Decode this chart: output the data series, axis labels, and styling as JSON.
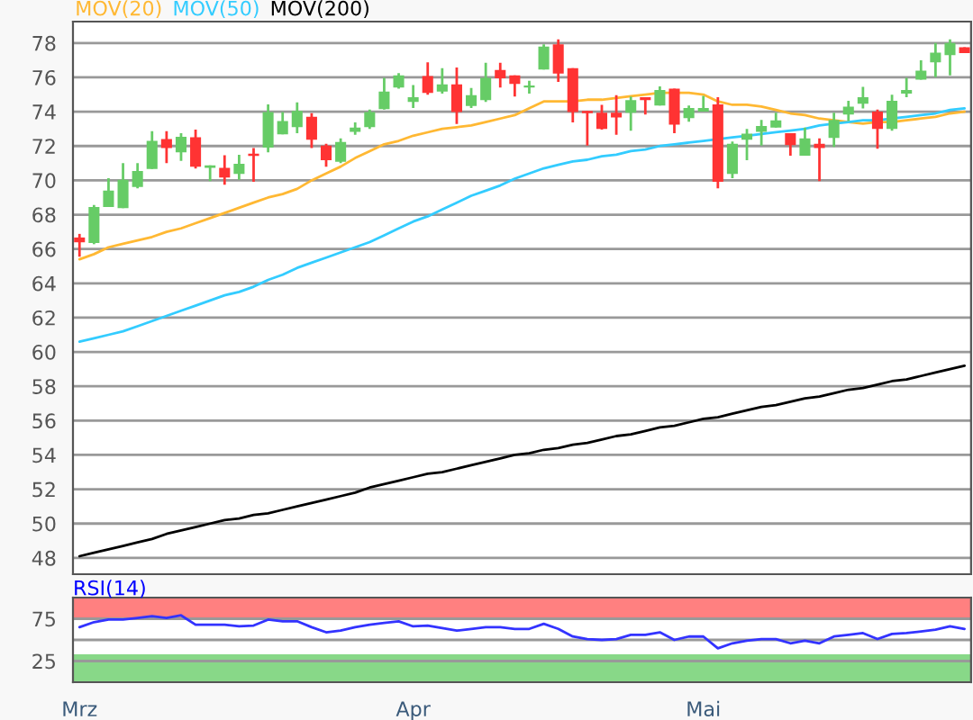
{
  "chart_data": [
    {
      "type": "candlestick",
      "ohlc": [
        [
          66.67,
          66.88,
          65.55,
          66.39
        ],
        [
          66.35,
          68.56,
          66.28,
          68.45
        ],
        [
          68.45,
          70.13,
          68.45,
          69.4
        ],
        [
          68.38,
          71.0,
          68.38,
          70.03
        ],
        [
          69.61,
          71.0,
          69.54,
          70.55
        ],
        [
          70.66,
          72.86,
          70.66,
          72.3
        ],
        [
          72.4,
          72.86,
          71.0,
          71.88
        ],
        [
          71.63,
          72.75,
          71.14,
          72.54
        ],
        [
          72.51,
          72.96,
          70.69,
          70.79
        ],
        [
          70.73,
          70.87,
          69.96,
          70.87
        ],
        [
          70.73,
          71.46,
          69.75,
          70.17
        ],
        [
          70.38,
          71.49,
          70.03,
          70.97
        ],
        [
          71.56,
          71.88,
          69.92,
          71.42
        ],
        [
          71.91,
          74.43,
          71.63,
          73.98
        ],
        [
          72.68,
          73.98,
          72.68,
          73.45
        ],
        [
          73.1,
          74.54,
          72.75,
          74.05
        ],
        [
          73.7,
          73.91,
          71.88,
          72.37
        ],
        [
          72.02,
          72.13,
          70.79,
          71.18
        ],
        [
          71.08,
          72.44,
          71.0,
          72.23
        ],
        [
          72.82,
          73.38,
          72.65,
          73.07
        ],
        [
          73.1,
          74.12,
          73.0,
          73.98
        ],
        [
          74.15,
          75.97,
          74.12,
          75.17
        ],
        [
          75.41,
          76.25,
          75.34,
          76.11
        ],
        [
          74.57,
          75.55,
          74.22,
          74.85
        ],
        [
          76.08,
          76.88,
          74.99,
          75.1
        ],
        [
          75.17,
          76.53,
          75.06,
          75.59
        ],
        [
          75.59,
          76.57,
          73.28,
          73.98
        ],
        [
          74.33,
          75.38,
          74.22,
          74.96
        ],
        [
          74.68,
          76.85,
          74.57,
          75.97
        ],
        [
          76.43,
          76.85,
          75.41,
          75.94
        ],
        [
          76.11,
          76.11,
          74.89,
          75.62
        ],
        [
          75.41,
          75.8,
          75.06,
          75.52
        ],
        [
          76.46,
          77.93,
          76.46,
          77.79
        ],
        [
          77.93,
          78.21,
          75.73,
          76.22
        ],
        [
          76.53,
          76.53,
          73.38,
          73.98
        ],
        [
          74.05,
          74.05,
          72.02,
          73.91
        ],
        [
          73.94,
          74.4,
          72.96,
          73.0
        ],
        [
          73.94,
          74.96,
          72.65,
          73.66
        ],
        [
          73.94,
          74.89,
          72.89,
          74.68
        ],
        [
          74.85,
          74.85,
          73.84,
          74.68
        ],
        [
          74.36,
          75.48,
          74.36,
          75.27
        ],
        [
          75.34,
          75.34,
          72.75,
          73.24
        ],
        [
          73.63,
          74.36,
          73.42,
          74.22
        ],
        [
          74.01,
          74.92,
          74.01,
          74.22
        ],
        [
          74.43,
          74.85,
          69.54,
          69.92
        ],
        [
          70.38,
          72.26,
          70.13,
          72.13
        ],
        [
          72.37,
          73.0,
          71.18,
          72.72
        ],
        [
          72.82,
          73.52,
          72.02,
          73.17
        ],
        [
          73.07,
          73.94,
          73.07,
          73.49
        ],
        [
          72.75,
          72.75,
          71.43,
          72.05
        ],
        [
          71.43,
          73.07,
          71.43,
          72.44
        ],
        [
          72.13,
          72.44,
          69.96,
          71.88
        ],
        [
          72.47,
          73.94,
          71.95,
          73.52
        ],
        [
          73.84,
          74.64,
          73.45,
          74.29
        ],
        [
          74.47,
          75.45,
          74.19,
          74.85
        ],
        [
          74.01,
          74.12,
          71.84,
          73.0
        ],
        [
          73.0,
          74.99,
          72.89,
          74.64
        ],
        [
          75.06,
          75.97,
          74.85,
          75.27
        ],
        [
          75.87,
          76.99,
          75.87,
          76.39
        ],
        [
          76.88,
          78.0,
          76.01,
          77.44
        ],
        [
          77.3,
          78.21,
          76.11,
          78.0
        ],
        [
          77.76,
          77.76,
          77.41,
          77.41
        ]
      ],
      "colors": [
        "#ff3333",
        "#66cc66",
        "#66cc66",
        "#66cc66",
        "#66cc66",
        "#66cc66",
        "#ff3333",
        "#66cc66",
        "#ff3333",
        "#66cc66",
        "#ff3333",
        "#66cc66",
        "#ff3333",
        "#66cc66",
        "#66cc66",
        "#66cc66",
        "#ff3333",
        "#ff3333",
        "#66cc66",
        "#66cc66",
        "#66cc66",
        "#66cc66",
        "#66cc66",
        "#66cc66",
        "#ff3333",
        "#66cc66",
        "#ff3333",
        "#66cc66",
        "#66cc66",
        "#ff3333",
        "#ff3333",
        "#66cc66",
        "#66cc66",
        "#ff3333",
        "#ff3333",
        "#ff3333",
        "#ff3333",
        "#ff3333",
        "#66cc66",
        "#ff3333",
        "#66cc66",
        "#ff3333",
        "#66cc66",
        "#66cc66",
        "#ff3333",
        "#66cc66",
        "#66cc66",
        "#66cc66",
        "#66cc66",
        "#ff3333",
        "#66cc66",
        "#ff3333",
        "#66cc66",
        "#66cc66",
        "#66cc66",
        "#ff3333",
        "#66cc66",
        "#66cc66",
        "#66cc66",
        "#66cc66",
        "#66cc66",
        "#ff3333"
      ],
      "series": [
        {
          "type": "line",
          "name": "MOV(20)",
          "color": "#ffb833",
          "values": [
            65.4,
            65.7,
            66.1,
            66.3,
            66.5,
            66.7,
            67.0,
            67.2,
            67.5,
            67.8,
            68.1,
            68.4,
            68.7,
            69.0,
            69.2,
            69.5,
            70.0,
            70.4,
            70.8,
            71.3,
            71.7,
            72.1,
            72.3,
            72.6,
            72.8,
            73.0,
            73.1,
            73.2,
            73.4,
            73.6,
            73.8,
            74.2,
            74.6,
            74.6,
            74.6,
            74.7,
            74.7,
            74.8,
            74.9,
            75.0,
            75.1,
            75.1,
            75.1,
            75.0,
            74.6,
            74.4,
            74.4,
            74.3,
            74.1,
            73.9,
            73.8,
            73.6,
            73.5,
            73.4,
            73.3,
            73.4,
            73.4,
            73.5,
            73.6,
            73.7,
            73.9,
            74.0
          ]
        },
        {
          "type": "line",
          "name": "MOV(50)",
          "color": "#33ccff",
          "values": [
            60.6,
            60.8,
            61.0,
            61.2,
            61.5,
            61.8,
            62.1,
            62.4,
            62.7,
            63.0,
            63.3,
            63.5,
            63.8,
            64.2,
            64.5,
            64.9,
            65.2,
            65.5,
            65.8,
            66.1,
            66.4,
            66.8,
            67.2,
            67.6,
            67.9,
            68.3,
            68.7,
            69.1,
            69.4,
            69.7,
            70.1,
            70.4,
            70.7,
            70.9,
            71.1,
            71.2,
            71.4,
            71.5,
            71.7,
            71.8,
            72.0,
            72.1,
            72.2,
            72.3,
            72.4,
            72.5,
            72.6,
            72.7,
            72.8,
            72.9,
            73.0,
            73.2,
            73.3,
            73.4,
            73.5,
            73.5,
            73.6,
            73.7,
            73.8,
            73.9,
            74.1,
            74.2
          ]
        },
        {
          "type": "line",
          "name": "MOV(200)",
          "color": "#000000",
          "values": [
            48.1,
            48.3,
            48.5,
            48.7,
            48.9,
            49.1,
            49.4,
            49.6,
            49.8,
            50.0,
            50.2,
            50.3,
            50.5,
            50.6,
            50.8,
            51.0,
            51.2,
            51.4,
            51.6,
            51.8,
            52.1,
            52.3,
            52.5,
            52.7,
            52.9,
            53.0,
            53.2,
            53.4,
            53.6,
            53.8,
            54.0,
            54.1,
            54.3,
            54.4,
            54.6,
            54.7,
            54.9,
            55.1,
            55.2,
            55.4,
            55.6,
            55.7,
            55.9,
            56.1,
            56.2,
            56.4,
            56.6,
            56.8,
            56.9,
            57.1,
            57.3,
            57.4,
            57.6,
            57.8,
            57.9,
            58.1,
            58.3,
            58.4,
            58.6,
            58.8,
            59.0,
            59.2
          ]
        }
      ],
      "ylim": [
        47.05,
        79.25
      ],
      "yticks": [
        48,
        50,
        52,
        54,
        56,
        58,
        60,
        62,
        64,
        66,
        68,
        70,
        72,
        74,
        76,
        78
      ],
      "grid": "y",
      "tick_labels": "y",
      "legend": "top left"
    },
    {
      "type": "line",
      "title": "RSI(14)",
      "categories": [
        "Mrz",
        null,
        null,
        null,
        null,
        null,
        null,
        null,
        null,
        null,
        null,
        null,
        null,
        null,
        null,
        null,
        null,
        null,
        null,
        null,
        null,
        null,
        null,
        "Apr",
        null,
        null,
        null,
        null,
        null,
        null,
        null,
        null,
        null,
        null,
        null,
        null,
        null,
        null,
        null,
        null,
        null,
        null,
        null,
        "Mai",
        null,
        null,
        null,
        null,
        null,
        null,
        null,
        null,
        null,
        null,
        null,
        null,
        null,
        null,
        null,
        null,
        null,
        null
      ],
      "series": [
        {
          "color": "#3333ff",
          "values": [
            65,
            71,
            74,
            74,
            76,
            78,
            76,
            79,
            68,
            68,
            68,
            66,
            67,
            74,
            72,
            72,
            65,
            59,
            61,
            65,
            68,
            70,
            72,
            66,
            67,
            64,
            61,
            63,
            65,
            65,
            63,
            63,
            69,
            63,
            54,
            51,
            50,
            51,
            56,
            56,
            59,
            50,
            54,
            54,
            40,
            46,
            49,
            51,
            51,
            46,
            49,
            46,
            54,
            56,
            58,
            51,
            57,
            58,
            60,
            62,
            66,
            63
          ]
        }
      ],
      "ylim": [
        0,
        100
      ],
      "yticks": [
        25,
        75
      ],
      "grid": "y",
      "bands": [
        {
          "axis": "y",
          "from": 75,
          "to": 100,
          "color": "#ff8080"
        },
        {
          "axis": "y",
          "from": 0,
          "to": 33,
          "color": "#88d888"
        }
      ],
      "ref_lines": [
        {
          "axis": "y",
          "value": 50,
          "color": "#999999",
          "line_style": "solid"
        }
      ]
    }
  ]
}
